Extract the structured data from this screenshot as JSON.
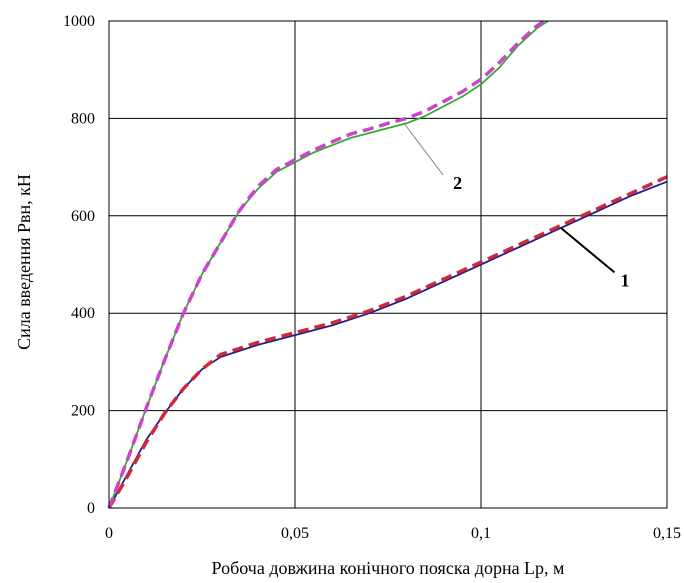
{
  "chart_data": {
    "type": "line",
    "xlabel": "Робоча довжина конічного пояска дорна Lр, м",
    "ylabel": "Сила введення Рвн, кН",
    "xlim": [
      0,
      0.15
    ],
    "ylim": [
      0,
      1000
    ],
    "x_ticks": [
      "0",
      "0,05",
      "0,1",
      "0,15"
    ],
    "y_ticks": [
      "0",
      "200",
      "400",
      "600",
      "800",
      "1000"
    ],
    "grid": true,
    "series": [
      {
        "name": "1",
        "color": "#1f1f8f",
        "style": "solid",
        "points": [
          [
            0,
            0
          ],
          [
            0.005,
            70
          ],
          [
            0.01,
            140
          ],
          [
            0.015,
            195
          ],
          [
            0.02,
            245
          ],
          [
            0.025,
            285
          ],
          [
            0.03,
            310
          ],
          [
            0.04,
            335
          ],
          [
            0.05,
            355
          ],
          [
            0.06,
            375
          ],
          [
            0.07,
            400
          ],
          [
            0.08,
            430
          ],
          [
            0.09,
            465
          ],
          [
            0.1,
            500
          ],
          [
            0.11,
            535
          ],
          [
            0.12,
            570
          ],
          [
            0.13,
            605
          ],
          [
            0.14,
            640
          ],
          [
            0.15,
            670
          ]
        ]
      },
      {
        "name": "1",
        "color": "#cc2a3a",
        "style": "dashed",
        "points": [
          [
            0,
            0
          ],
          [
            0.005,
            65
          ],
          [
            0.01,
            135
          ],
          [
            0.015,
            195
          ],
          [
            0.02,
            245
          ],
          [
            0.025,
            285
          ],
          [
            0.03,
            315
          ],
          [
            0.04,
            340
          ],
          [
            0.05,
            360
          ],
          [
            0.06,
            380
          ],
          [
            0.07,
            405
          ],
          [
            0.08,
            435
          ],
          [
            0.09,
            470
          ],
          [
            0.1,
            505
          ],
          [
            0.11,
            540
          ],
          [
            0.12,
            575
          ],
          [
            0.13,
            610
          ],
          [
            0.14,
            645
          ],
          [
            0.15,
            680
          ]
        ]
      },
      {
        "name": "2",
        "color": "#33aa33",
        "style": "solid",
        "points": [
          [
            0,
            0
          ],
          [
            0.005,
            100
          ],
          [
            0.01,
            205
          ],
          [
            0.015,
            305
          ],
          [
            0.02,
            400
          ],
          [
            0.025,
            480
          ],
          [
            0.03,
            545
          ],
          [
            0.035,
            610
          ],
          [
            0.04,
            655
          ],
          [
            0.045,
            690
          ],
          [
            0.05,
            710
          ],
          [
            0.055,
            730
          ],
          [
            0.06,
            745
          ],
          [
            0.065,
            760
          ],
          [
            0.07,
            770
          ],
          [
            0.075,
            780
          ],
          [
            0.08,
            790
          ],
          [
            0.085,
            805
          ],
          [
            0.09,
            825
          ],
          [
            0.095,
            845
          ],
          [
            0.1,
            870
          ],
          [
            0.105,
            905
          ],
          [
            0.11,
            950
          ],
          [
            0.115,
            985
          ],
          [
            0.118,
            1000
          ]
        ]
      },
      {
        "name": "2",
        "color": "#cc44cc",
        "style": "dashed",
        "points": [
          [
            0,
            0
          ],
          [
            0.005,
            100
          ],
          [
            0.01,
            205
          ],
          [
            0.015,
            305
          ],
          [
            0.02,
            400
          ],
          [
            0.025,
            480
          ],
          [
            0.03,
            545
          ],
          [
            0.035,
            610
          ],
          [
            0.04,
            660
          ],
          [
            0.045,
            695
          ],
          [
            0.05,
            715
          ],
          [
            0.055,
            735
          ],
          [
            0.06,
            752
          ],
          [
            0.065,
            768
          ],
          [
            0.07,
            778
          ],
          [
            0.075,
            790
          ],
          [
            0.08,
            800
          ],
          [
            0.085,
            815
          ],
          [
            0.09,
            835
          ],
          [
            0.095,
            855
          ],
          [
            0.1,
            880
          ],
          [
            0.105,
            915
          ],
          [
            0.11,
            955
          ],
          [
            0.115,
            990
          ],
          [
            0.117,
            1000
          ]
        ]
      }
    ],
    "annotations": [
      {
        "text": "1",
        "label_at": [
          0.1375,
          455
        ],
        "points_to": [
          0.1215,
          575
        ]
      },
      {
        "text": "2",
        "label_at": [
          0.0925,
          655
        ],
        "points_to": [
          0.0795,
          788
        ]
      }
    ]
  }
}
